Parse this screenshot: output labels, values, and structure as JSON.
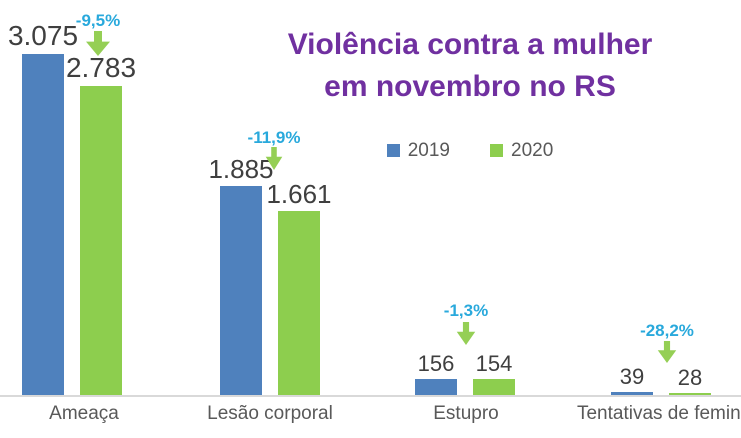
{
  "title": {
    "line1": "Violência contra a mulher",
    "line2": "em novembro no RS"
  },
  "legend": {
    "items": [
      {
        "label": "2019",
        "color": "#4F81BD"
      },
      {
        "label": "2020",
        "color": "#8DCE4E"
      }
    ]
  },
  "colors": {
    "bar_2019": "#4F81BD",
    "bar_2020": "#8DCE4E",
    "arrow": "#95CF55",
    "percent_text": "#29A9DC",
    "value_text": "#3F3F3F",
    "category_text": "#595959",
    "title_text": "#7030A0",
    "axis_line": "#D9D9D9"
  },
  "chart_data": {
    "type": "bar",
    "title": "Violência contra a mulher em novembro no RS",
    "categories": [
      "Ameaça",
      "Lesão corporal",
      "Estupro",
      "Tentativas de feminicídio"
    ],
    "series": [
      {
        "name": "2019",
        "color": "#4F81BD",
        "values": [
          3075,
          1885,
          156,
          39
        ],
        "value_labels": [
          "3.075",
          "1.885",
          "156",
          "39"
        ]
      },
      {
        "name": "2020",
        "color": "#8DCE4E",
        "values": [
          2783,
          1661,
          154,
          28
        ],
        "value_labels": [
          "2.783",
          "1.661",
          "154",
          "28"
        ]
      }
    ],
    "change_labels": [
      "-9,5%",
      "-11,9%",
      "-1,3%",
      "-28,2%"
    ],
    "ylim": [
      0,
      3075
    ],
    "grid": false,
    "legend_position": "top-center",
    "annotation_style": "green-down-arrow-with-percent"
  }
}
